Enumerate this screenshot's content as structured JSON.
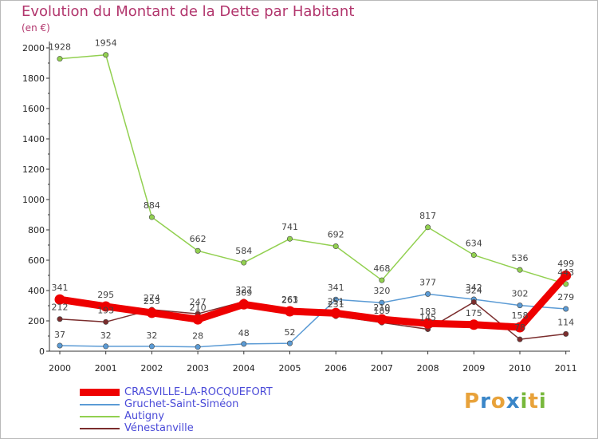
{
  "title": "Evolution du Montant de la Dette par Habitant",
  "unit": "(en €)",
  "brand": {
    "letters": [
      "P",
      "r",
      "o",
      "x",
      "i",
      "t",
      "i"
    ],
    "colors": [
      "#e8a23a",
      "#3a86c8",
      "#e8a23a",
      "#3a86c8",
      "#78b83c",
      "#e8a23a",
      "#78b83c"
    ]
  },
  "chart_data": {
    "type": "line",
    "title": "Evolution du Montant de la Dette par Habitant",
    "ylabel": "(en €)",
    "xlabel": "",
    "categories": [
      "2000",
      "2001",
      "2002",
      "2003",
      "2004",
      "2005",
      "2006",
      "2007",
      "2008",
      "2009",
      "2010",
      "2011"
    ],
    "ylim": [
      0,
      2000
    ],
    "yticks": [
      "0",
      "200",
      "400",
      "600",
      "800",
      "1000",
      "1200",
      "1400",
      "1600",
      "1800",
      "2000"
    ],
    "grid": false,
    "legend": "bottom-left",
    "series": [
      {
        "name": "CRASVILLE-LA-ROCQUEFORT",
        "color": "#ee0000",
        "values": [
          341,
          295,
          253,
          210,
          309,
          263,
          251,
          210,
          183,
          175,
          158,
          499
        ]
      },
      {
        "name": "Gruchet-Saint-Siméon",
        "color": "#5b9bd5",
        "values": [
          37,
          32,
          32,
          28,
          48,
          52,
          341,
          320,
          377,
          342,
          302,
          279
        ]
      },
      {
        "name": "Autigny",
        "color": "#92d050",
        "values": [
          1928,
          1954,
          884,
          662,
          584,
          741,
          692,
          468,
          817,
          634,
          536,
          443
        ]
      },
      {
        "name": "Vénestanville",
        "color": "#7b2d2d",
        "values": [
          212,
          193,
          274,
          247,
          327,
          261,
          231,
          189,
          145,
          324,
          78,
          114
        ]
      }
    ]
  }
}
